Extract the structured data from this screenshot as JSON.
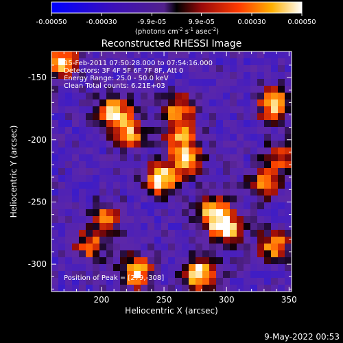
{
  "chart_data": {
    "type": "heatmap",
    "title": "Reconstructed RHESSI Image",
    "xlabel": "Heliocentric X (arcsec)",
    "ylabel": "Heliocentric Y (arcsec)",
    "xlim": [
      160,
      352
    ],
    "ylim": [
      -322,
      -129
    ],
    "x_ticks": [
      200,
      250,
      300,
      350
    ],
    "y_ticks": [
      -150,
      -200,
      -250,
      -300
    ],
    "colorbar": {
      "range": [
        -0.0005,
        0.0005
      ],
      "ticks": [
        -0.0005,
        -0.0003,
        -9.9e-05,
        9.9e-05,
        0.0003,
        0.0005
      ],
      "tick_labels": [
        "-0.00050",
        "-0.00030",
        "-9.9e-05",
        "9.9e-05",
        "0.00030",
        "0.00050"
      ],
      "unit_label_main": "(photons cm",
      "unit_sup1": "-2",
      "unit_mid": " s",
      "unit_sup2": "-1",
      "unit_mid2": " asec",
      "unit_sup3": "-2",
      "unit_end": ")"
    },
    "info_lines": [
      "15-Feb-2011 07:50:28.000 to 07:54:16.000",
      "Detectors: 3F 4F 5F 6F 7F 8F, Att 0",
      "Energy Range: 25.0 - 50.0 keV",
      "Clean     Total counts: 6.21E+03"
    ],
    "peak_label": "Position of Peak = [279,-308]",
    "peak": [
      279,
      -308
    ],
    "hotspots": [
      {
        "x": 168,
        "y": -138,
        "value": 0.00038
      },
      {
        "x": 210,
        "y": -178,
        "value": 0.00042
      },
      {
        "x": 222,
        "y": -195,
        "value": 0.0003
      },
      {
        "x": 248,
        "y": -232,
        "value": 0.00048
      },
      {
        "x": 268,
        "y": -215,
        "value": 0.00035
      },
      {
        "x": 262,
        "y": -175,
        "value": 0.00025
      },
      {
        "x": 262,
        "y": -195,
        "value": 0.00022
      },
      {
        "x": 290,
        "y": -258,
        "value": 0.00045
      },
      {
        "x": 300,
        "y": -272,
        "value": 0.00035
      },
      {
        "x": 338,
        "y": -172,
        "value": 0.0004
      },
      {
        "x": 338,
        "y": -285,
        "value": 0.00032
      },
      {
        "x": 228,
        "y": -306,
        "value": 0.0004
      },
      {
        "x": 279,
        "y": -308,
        "value": 0.0005
      },
      {
        "x": 190,
        "y": -285,
        "value": 0.00022
      },
      {
        "x": 205,
        "y": -262,
        "value": 0.0002
      },
      {
        "x": 330,
        "y": -235,
        "value": 0.00022
      },
      {
        "x": 345,
        "y": -212,
        "value": 0.0002
      }
    ],
    "timestamp": "9-May-2022 00:53"
  }
}
